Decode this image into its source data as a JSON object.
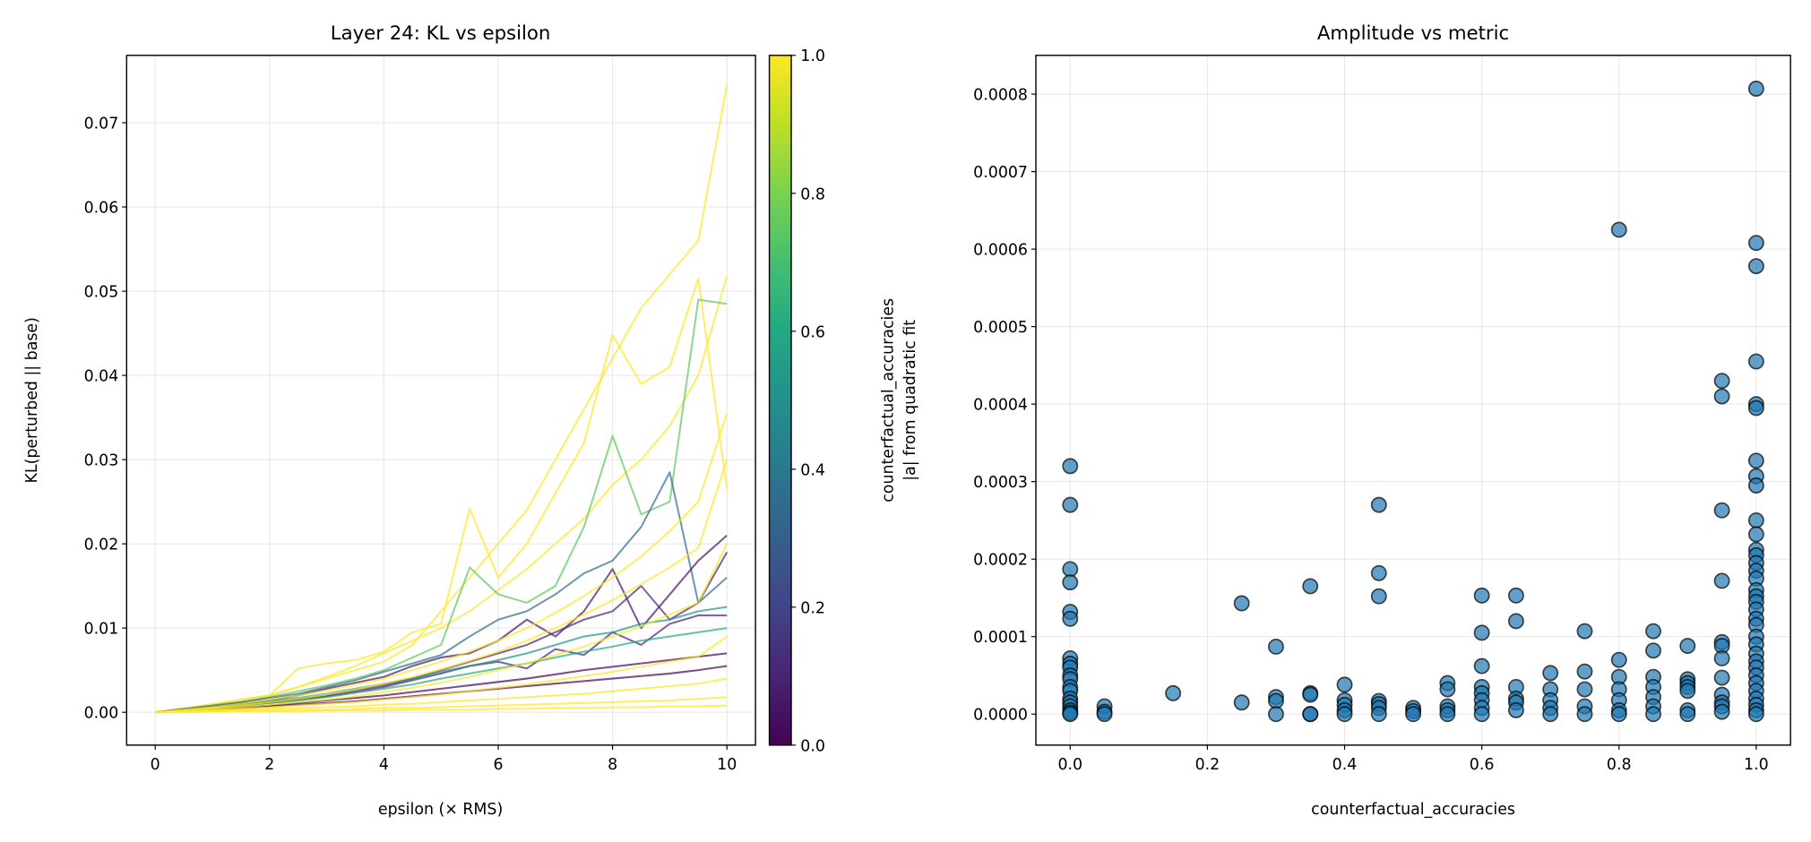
{
  "chart_data": [
    {
      "type": "line",
      "title": "Layer 24: KL vs epsilon",
      "xlabel": "epsilon (× RMS)",
      "ylabel": "KL(perturbed || base)",
      "xlim": [
        -0.5,
        10.5
      ],
      "ylim": [
        -0.0039,
        0.078
      ],
      "xticks": [
        0,
        2,
        4,
        6,
        8,
        10
      ],
      "xtick_labels": [
        "0",
        "2",
        "4",
        "6",
        "8",
        "10"
      ],
      "yticks": [
        0.0,
        0.01,
        0.02,
        0.03,
        0.04,
        0.05,
        0.06,
        0.07
      ],
      "ytick_labels": [
        "0.00",
        "0.01",
        "0.02",
        "0.03",
        "0.04",
        "0.05",
        "0.06",
        "0.07"
      ],
      "grid": true,
      "x": [
        0,
        0.5,
        1,
        1.5,
        2,
        2.5,
        3,
        3.5,
        4,
        4.5,
        5,
        5.5,
        6,
        6.5,
        7,
        7.5,
        8,
        8.5,
        9,
        9.5,
        10
      ],
      "colormap": "viridis",
      "line_alpha": 0.7,
      "colorbar": {
        "label": "counterfactual_accuracies",
        "range": [
          0.0,
          1.0
        ],
        "ticks": [
          0.0,
          0.2,
          0.4,
          0.6,
          0.8,
          1.0
        ],
        "tick_labels": [
          "0.0",
          "0.2",
          "0.4",
          "0.6",
          "0.8",
          "1.0"
        ]
      },
      "series": [
        {
          "c": 1.0,
          "values": [
            0,
            0.0005,
            0.001,
            0.0015,
            0.002,
            0.003,
            0.004,
            0.005,
            0.006,
            0.008,
            0.012,
            0.016,
            0.02,
            0.024,
            0.03,
            0.036,
            0.042,
            0.048,
            0.052,
            0.056,
            0.0745
          ]
        },
        {
          "c": 1.0,
          "values": [
            0,
            0.0003,
            0.0008,
            0.0015,
            0.002,
            0.0052,
            0.0058,
            0.0062,
            0.0072,
            0.0095,
            0.0105,
            0.0242,
            0.016,
            0.02,
            0.026,
            0.032,
            0.0448,
            0.039,
            0.041,
            0.0515,
            0.0265
          ]
        },
        {
          "c": 1.0,
          "values": [
            0,
            0.0004,
            0.0009,
            0.0014,
            0.002,
            0.003,
            0.0042,
            0.0055,
            0.007,
            0.0085,
            0.01,
            0.012,
            0.0145,
            0.017,
            0.02,
            0.023,
            0.027,
            0.03,
            0.034,
            0.04,
            0.0518
          ]
        },
        {
          "c": 0.75,
          "values": [
            0,
            0.0003,
            0.0007,
            0.0012,
            0.0018,
            0.0025,
            0.0032,
            0.004,
            0.005,
            0.0065,
            0.008,
            0.0172,
            0.014,
            0.013,
            0.015,
            0.022,
            0.0328,
            0.0235,
            0.025,
            0.049,
            0.0485
          ]
        },
        {
          "c": 0.35,
          "values": [
            0,
            0.0004,
            0.0008,
            0.0012,
            0.0017,
            0.0022,
            0.003,
            0.0038,
            0.0048,
            0.0058,
            0.0068,
            0.009,
            0.011,
            0.012,
            0.014,
            0.0165,
            0.018,
            0.022,
            0.0285,
            0.013,
            0.016
          ]
        },
        {
          "c": 0.05,
          "values": [
            0,
            0.0003,
            0.0006,
            0.001,
            0.0014,
            0.002,
            0.0028,
            0.0035,
            0.0042,
            0.0055,
            0.0065,
            0.007,
            0.0085,
            0.011,
            0.009,
            0.012,
            0.017,
            0.01,
            0.014,
            0.018,
            0.021
          ]
        },
        {
          "c": 0.1,
          "values": [
            0,
            0.0003,
            0.0006,
            0.0009,
            0.0012,
            0.0016,
            0.002,
            0.0026,
            0.0032,
            0.004,
            0.005,
            0.006,
            0.007,
            0.008,
            0.0095,
            0.011,
            0.012,
            0.015,
            0.011,
            0.013,
            0.019
          ]
        },
        {
          "c": 0.1,
          "values": [
            0,
            0.0002,
            0.0005,
            0.0008,
            0.0011,
            0.0015,
            0.0019,
            0.0024,
            0.003,
            0.0038,
            0.0046,
            0.0055,
            0.006,
            0.0052,
            0.0075,
            0.0068,
            0.0095,
            0.008,
            0.0105,
            0.0115,
            0.0115
          ]
        },
        {
          "c": 0.5,
          "values": [
            0,
            0.0003,
            0.0006,
            0.0009,
            0.0013,
            0.0017,
            0.0022,
            0.0028,
            0.0034,
            0.004,
            0.0048,
            0.0055,
            0.0062,
            0.007,
            0.008,
            0.009,
            0.0095,
            0.0105,
            0.011,
            0.012,
            0.0125
          ]
        },
        {
          "c": 0.6,
          "values": [
            0,
            0.0002,
            0.0005,
            0.0008,
            0.0011,
            0.0014,
            0.0018,
            0.0023,
            0.0028,
            0.0033,
            0.004,
            0.0046,
            0.0052,
            0.0058,
            0.0065,
            0.0072,
            0.0078,
            0.0085,
            0.009,
            0.0095,
            0.01
          ]
        },
        {
          "c": 0.0,
          "values": [
            0,
            0.0002,
            0.0004,
            0.0006,
            0.0008,
            0.0011,
            0.0014,
            0.0017,
            0.002,
            0.0024,
            0.0028,
            0.0032,
            0.0036,
            0.004,
            0.0045,
            0.005,
            0.0054,
            0.0058,
            0.0062,
            0.0066,
            0.007
          ]
        },
        {
          "c": 0.0,
          "values": [
            0,
            0.0002,
            0.0003,
            0.0005,
            0.0007,
            0.0009,
            0.0011,
            0.0013,
            0.0016,
            0.0019,
            0.0022,
            0.0025,
            0.0028,
            0.0031,
            0.0034,
            0.0037,
            0.004,
            0.0043,
            0.0046,
            0.005,
            0.0055
          ]
        },
        {
          "c": 1.0,
          "values": [
            0,
            0.0003,
            0.0006,
            0.001,
            0.0015,
            0.002,
            0.0026,
            0.0033,
            0.004,
            0.005,
            0.006,
            0.0072,
            0.0085,
            0.01,
            0.0118,
            0.0138,
            0.016,
            0.0185,
            0.0215,
            0.025,
            0.0355
          ]
        },
        {
          "c": 1.0,
          "values": [
            0,
            0.0002,
            0.0005,
            0.0008,
            0.0012,
            0.0016,
            0.0021,
            0.0027,
            0.0034,
            0.0042,
            0.0051,
            0.0061,
            0.0072,
            0.0085,
            0.01,
            0.0116,
            0.0133,
            0.0152,
            0.0172,
            0.0195,
            0.03
          ]
        },
        {
          "c": 1.0,
          "values": [
            0,
            0.0002,
            0.0004,
            0.0006,
            0.0009,
            0.0012,
            0.0015,
            0.0019,
            0.0024,
            0.0029,
            0.0035,
            0.0042,
            0.005,
            0.0058,
            0.0068,
            0.0078,
            0.009,
            0.0102,
            0.0116,
            0.013,
            0.02
          ]
        },
        {
          "c": 1.0,
          "values": [
            0,
            0.0001,
            0.0003,
            0.0004,
            0.0006,
            0.0008,
            0.001,
            0.0012,
            0.0015,
            0.0018,
            0.0021,
            0.0025,
            0.0029,
            0.0033,
            0.0038,
            0.0043,
            0.0048,
            0.0054,
            0.006,
            0.0066,
            0.009
          ]
        },
        {
          "c": 1.0,
          "values": [
            0,
            0.0001,
            0.0002,
            0.0003,
            0.0004,
            0.0005,
            0.0006,
            0.0007,
            0.0009,
            0.001,
            0.0012,
            0.0014,
            0.0016,
            0.0018,
            0.002,
            0.0022,
            0.0025,
            0.0028,
            0.0031,
            0.0034,
            0.004
          ]
        },
        {
          "c": 1.0,
          "values": [
            0,
            0.0001,
            0.0001,
            0.0002,
            0.0002,
            0.0003,
            0.0003,
            0.0004,
            0.0005,
            0.0005,
            0.0006,
            0.0007,
            0.0008,
            0.0009,
            0.001,
            0.0011,
            0.0012,
            0.0013,
            0.0014,
            0.0016,
            0.0018
          ]
        },
        {
          "c": 1.0,
          "values": [
            0,
            0.0,
            0.0001,
            0.0001,
            0.0001,
            0.0001,
            0.0002,
            0.0002,
            0.0002,
            0.0003,
            0.0003,
            0.0003,
            0.0004,
            0.0004,
            0.0005,
            0.0005,
            0.0006,
            0.0006,
            0.0007,
            0.0007,
            0.0008
          ]
        }
      ]
    },
    {
      "type": "scatter",
      "title": "Amplitude vs metric",
      "xlabel": "counterfactual_accuracies",
      "ylabel": "|a| from quadratic fit",
      "xlim": [
        -0.05,
        1.05
      ],
      "ylim": [
        -4e-05,
        0.00085
      ],
      "xticks": [
        0.0,
        0.2,
        0.4,
        0.6,
        0.8,
        1.0
      ],
      "xtick_labels": [
        "0.0",
        "0.2",
        "0.4",
        "0.6",
        "0.8",
        "1.0"
      ],
      "yticks": [
        0.0,
        0.0001,
        0.0002,
        0.0003,
        0.0004,
        0.0005,
        0.0006,
        0.0007,
        0.0008
      ],
      "ytick_labels": [
        "0.0000",
        "0.0001",
        "0.0002",
        "0.0003",
        "0.0004",
        "0.0005",
        "0.0006",
        "0.0007",
        "0.0008"
      ],
      "grid": true,
      "marker_color": "#1f77b4",
      "marker_alpha": 0.7,
      "marker_edge": "#000000",
      "points": [
        [
          0.0,
          0.00032
        ],
        [
          0.0,
          0.00027
        ],
        [
          0.0,
          0.000187
        ],
        [
          0.0,
          0.00017
        ],
        [
          0.0,
          0.000132
        ],
        [
          0.0,
          0.000123
        ],
        [
          0.0,
          7.2e-05
        ],
        [
          0.0,
          6.5e-05
        ],
        [
          0.0,
          6e-05
        ],
        [
          0.0,
          5e-05
        ],
        [
          0.0,
          4.5e-05
        ],
        [
          0.0,
          3.5e-05
        ],
        [
          0.0,
          3e-05
        ],
        [
          0.0,
          2e-05
        ],
        [
          0.0,
          1.5e-05
        ],
        [
          0.0,
          1e-05
        ],
        [
          0.0,
          5e-06
        ],
        [
          0.0,
          2e-06
        ],
        [
          0.0,
          0.0
        ],
        [
          0.05,
          1e-05
        ],
        [
          0.05,
          3e-06
        ],
        [
          0.05,
          0.0
        ],
        [
          0.15,
          2.7e-05
        ],
        [
          0.25,
          0.000143
        ],
        [
          0.25,
          1.5e-05
        ],
        [
          0.3,
          8.7e-05
        ],
        [
          0.3,
          2.2e-05
        ],
        [
          0.3,
          1.7e-05
        ],
        [
          0.3,
          0.0
        ],
        [
          0.35,
          0.000165
        ],
        [
          0.35,
          2.7e-05
        ],
        [
          0.35,
          2.5e-05
        ],
        [
          0.35,
          0.0
        ],
        [
          0.35,
          0.0
        ],
        [
          0.4,
          3.8e-05
        ],
        [
          0.4,
          1.8e-05
        ],
        [
          0.4,
          1.2e-05
        ],
        [
          0.4,
          5e-06
        ],
        [
          0.4,
          0.0
        ],
        [
          0.45,
          0.00027
        ],
        [
          0.45,
          0.000182
        ],
        [
          0.45,
          0.000152
        ],
        [
          0.45,
          1.7e-05
        ],
        [
          0.45,
          1.3e-05
        ],
        [
          0.45,
          8e-06
        ],
        [
          0.45,
          0.0
        ],
        [
          0.5,
          8e-06
        ],
        [
          0.5,
          4e-06
        ],
        [
          0.5,
          0.0
        ],
        [
          0.55,
          4e-05
        ],
        [
          0.55,
          3.2e-05
        ],
        [
          0.55,
          1e-05
        ],
        [
          0.55,
          5e-06
        ],
        [
          0.55,
          0.0
        ],
        [
          0.6,
          0.000153
        ],
        [
          0.6,
          0.000105
        ],
        [
          0.6,
          6.2e-05
        ],
        [
          0.6,
          3.5e-05
        ],
        [
          0.6,
          2.7e-05
        ],
        [
          0.6,
          1.8e-05
        ],
        [
          0.6,
          8e-06
        ],
        [
          0.6,
          0.0
        ],
        [
          0.65,
          0.000153
        ],
        [
          0.65,
          0.00012
        ],
        [
          0.65,
          3.5e-05
        ],
        [
          0.65,
          2e-05
        ],
        [
          0.65,
          1.5e-05
        ],
        [
          0.65,
          5e-06
        ],
        [
          0.7,
          5.3e-05
        ],
        [
          0.7,
          3.2e-05
        ],
        [
          0.7,
          1.8e-05
        ],
        [
          0.7,
          8e-06
        ],
        [
          0.7,
          0.0
        ],
        [
          0.75,
          0.000107
        ],
        [
          0.75,
          5.5e-05
        ],
        [
          0.75,
          3.2e-05
        ],
        [
          0.75,
          1e-05
        ],
        [
          0.75,
          0.0
        ],
        [
          0.8,
          0.000625
        ],
        [
          0.8,
          7e-05
        ],
        [
          0.8,
          4.8e-05
        ],
        [
          0.8,
          3.2e-05
        ],
        [
          0.8,
          1.8e-05
        ],
        [
          0.8,
          5e-06
        ],
        [
          0.8,
          0.0
        ],
        [
          0.85,
          0.000107
        ],
        [
          0.85,
          8.2e-05
        ],
        [
          0.85,
          4.8e-05
        ],
        [
          0.85,
          3.5e-05
        ],
        [
          0.85,
          2.2e-05
        ],
        [
          0.85,
          1e-05
        ],
        [
          0.85,
          0.0
        ],
        [
          0.9,
          8.8e-05
        ],
        [
          0.9,
          4.5e-05
        ],
        [
          0.9,
          4e-05
        ],
        [
          0.9,
          3.5e-05
        ],
        [
          0.9,
          3e-05
        ],
        [
          0.9,
          5e-06
        ],
        [
          0.9,
          0.0
        ],
        [
          0.95,
          0.00043
        ],
        [
          0.95,
          0.00041
        ],
        [
          0.95,
          0.000263
        ],
        [
          0.95,
          0.000172
        ],
        [
          0.95,
          9.3e-05
        ],
        [
          0.95,
          8.8e-05
        ],
        [
          0.95,
          7.2e-05
        ],
        [
          0.95,
          4.7e-05
        ],
        [
          0.95,
          2.5e-05
        ],
        [
          0.95,
          1.5e-05
        ],
        [
          0.95,
          1e-05
        ],
        [
          0.95,
          3e-06
        ],
        [
          1.0,
          0.000807
        ],
        [
          1.0,
          0.000608
        ],
        [
          1.0,
          0.000578
        ],
        [
          1.0,
          0.000455
        ],
        [
          1.0,
          0.0004
        ],
        [
          1.0,
          0.000395
        ],
        [
          1.0,
          0.000327
        ],
        [
          1.0,
          0.000307
        ],
        [
          1.0,
          0.000295
        ],
        [
          1.0,
          0.00025
        ],
        [
          1.0,
          0.000232
        ],
        [
          1.0,
          0.000212
        ],
        [
          1.0,
          0.000205
        ],
        [
          1.0,
          0.000195
        ],
        [
          1.0,
          0.000185
        ],
        [
          1.0,
          0.000175
        ],
        [
          1.0,
          0.00016
        ],
        [
          1.0,
          0.000152
        ],
        [
          1.0,
          0.000145
        ],
        [
          1.0,
          0.000135
        ],
        [
          1.0,
          0.000123
        ],
        [
          1.0,
          0.000115
        ],
        [
          1.0,
          0.0001
        ],
        [
          1.0,
          9e-05
        ],
        [
          1.0,
          7.8e-05
        ],
        [
          1.0,
          6.8e-05
        ],
        [
          1.0,
          6e-05
        ],
        [
          1.0,
          5e-05
        ],
        [
          1.0,
          4e-05
        ],
        [
          1.0,
          3e-05
        ],
        [
          1.0,
          2e-05
        ],
        [
          1.0,
          1.2e-05
        ],
        [
          1.0,
          5e-06
        ],
        [
          1.0,
          0.0
        ]
      ]
    }
  ]
}
